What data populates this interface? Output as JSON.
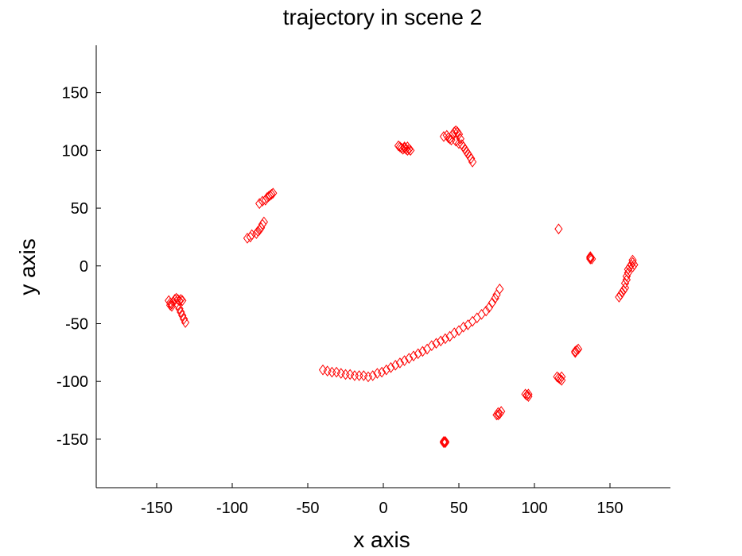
{
  "chart_data": {
    "type": "scatter",
    "title": "trajectory in scene 2",
    "xlabel": "x axis",
    "ylabel": "y axis",
    "xlim": [
      -190,
      190
    ],
    "ylim": [
      -192,
      191
    ],
    "xticks": [
      -150,
      -100,
      -50,
      0,
      50,
      100,
      150
    ],
    "yticks": [
      -150,
      -100,
      -50,
      0,
      50,
      100,
      150
    ],
    "xtick_labels": [
      "-150",
      "-100",
      "-50",
      "0",
      "50",
      "100",
      "150"
    ],
    "ytick_labels": [
      "-150",
      "-100",
      "-50",
      "0",
      "50",
      "100",
      "150"
    ],
    "grid": false,
    "marker": "diamond",
    "color": "#ff0000",
    "series": [
      {
        "points": [
          [
            -142,
            -30
          ],
          [
            -141,
            -32
          ],
          [
            -140,
            -33
          ],
          [
            -139,
            -31
          ],
          [
            -138,
            -29
          ],
          [
            -137,
            -28
          ],
          [
            -136,
            -29
          ],
          [
            -135,
            -30
          ],
          [
            -134,
            -29
          ],
          [
            -133,
            -30
          ],
          [
            -136,
            -34
          ],
          [
            -135,
            -37
          ],
          [
            -134,
            -40
          ],
          [
            -133,
            -43
          ],
          [
            -132,
            -46
          ],
          [
            -131,
            -49
          ],
          [
            -140,
            -35
          ],
          [
            -141,
            -34
          ],
          [
            -90,
            24
          ],
          [
            -88,
            25
          ],
          [
            -87,
            27
          ],
          [
            -84,
            28
          ],
          [
            -83,
            30
          ],
          [
            -82,
            31
          ],
          [
            -81,
            33
          ],
          [
            -80,
            36
          ],
          [
            -79,
            38
          ],
          [
            -82,
            54
          ],
          [
            -80,
            56
          ],
          [
            -78,
            57
          ],
          [
            -77,
            59
          ],
          [
            -76,
            60
          ],
          [
            -75,
            61
          ],
          [
            -74,
            62
          ],
          [
            -73,
            63
          ],
          [
            10,
            104
          ],
          [
            11,
            103
          ],
          [
            12,
            102
          ],
          [
            13,
            101
          ],
          [
            14,
            102
          ],
          [
            15,
            101
          ],
          [
            16,
            100
          ],
          [
            17,
            101
          ],
          [
            16,
            103
          ],
          [
            14,
            103
          ],
          [
            18,
            100
          ],
          [
            40,
            112
          ],
          [
            42,
            113
          ],
          [
            43,
            111
          ],
          [
            44,
            110
          ],
          [
            45,
            109
          ],
          [
            46,
            114
          ],
          [
            47,
            116
          ],
          [
            48,
            117
          ],
          [
            49,
            116
          ],
          [
            50,
            114
          ],
          [
            51,
            110
          ],
          [
            48,
            108
          ],
          [
            50,
            106
          ],
          [
            52,
            105
          ],
          [
            53,
            103
          ],
          [
            54,
            101
          ],
          [
            55,
            99
          ],
          [
            56,
            97
          ],
          [
            57,
            95
          ],
          [
            58,
            93
          ],
          [
            59,
            90
          ],
          [
            -40,
            -90
          ],
          [
            -37,
            -91
          ],
          [
            -34,
            -92
          ],
          [
            -31,
            -92
          ],
          [
            -28,
            -93
          ],
          [
            -25,
            -94
          ],
          [
            -22,
            -94
          ],
          [
            -19,
            -95
          ],
          [
            -16,
            -95
          ],
          [
            -13,
            -95
          ],
          [
            -10,
            -96
          ],
          [
            -7,
            -95
          ],
          [
            -4,
            -93
          ],
          [
            -1,
            -92
          ],
          [
            2,
            -90
          ],
          [
            5,
            -88
          ],
          [
            8,
            -86
          ],
          [
            11,
            -84
          ],
          [
            14,
            -82
          ],
          [
            17,
            -80
          ],
          [
            20,
            -78
          ],
          [
            23,
            -76
          ],
          [
            26,
            -74
          ],
          [
            29,
            -72
          ],
          [
            32,
            -69
          ],
          [
            35,
            -67
          ],
          [
            38,
            -65
          ],
          [
            41,
            -63
          ],
          [
            44,
            -61
          ],
          [
            47,
            -58
          ],
          [
            50,
            -56
          ],
          [
            53,
            -53
          ],
          [
            56,
            -51
          ],
          [
            59,
            -48
          ],
          [
            62,
            -45
          ],
          [
            65,
            -42
          ],
          [
            68,
            -39
          ],
          [
            70,
            -36
          ],
          [
            72,
            -32
          ],
          [
            74,
            -28
          ],
          [
            75,
            -25
          ],
          [
            77,
            -20
          ],
          [
            116,
            32
          ],
          [
            137,
            6
          ],
          [
            137,
            7
          ],
          [
            137,
            8
          ],
          [
            138,
            6
          ],
          [
            156,
            -27
          ],
          [
            157,
            -25
          ],
          [
            158,
            -23
          ],
          [
            159,
            -21
          ],
          [
            160,
            -19
          ],
          [
            160,
            -15
          ],
          [
            161,
            -12
          ],
          [
            161,
            -9
          ],
          [
            162,
            -6
          ],
          [
            162,
            -3
          ],
          [
            163,
            -1
          ],
          [
            164,
            1
          ],
          [
            165,
            3
          ],
          [
            165,
            5
          ],
          [
            166,
            1
          ],
          [
            165,
            -1
          ],
          [
            127,
            -74
          ],
          [
            128,
            -73
          ],
          [
            129,
            -72
          ],
          [
            127,
            -75
          ],
          [
            115,
            -96
          ],
          [
            116,
            -97
          ],
          [
            117,
            -98
          ],
          [
            118,
            -96
          ],
          [
            118,
            -99
          ],
          [
            94,
            -111
          ],
          [
            95,
            -112
          ],
          [
            96,
            -111
          ],
          [
            96,
            -113
          ],
          [
            75,
            -129
          ],
          [
            76,
            -127
          ],
          [
            77,
            -128
          ],
          [
            78,
            -126
          ],
          [
            76,
            -129
          ],
          [
            40,
            -152
          ],
          [
            40,
            -153
          ],
          [
            41,
            -152
          ],
          [
            41,
            -153
          ]
        ]
      }
    ]
  }
}
